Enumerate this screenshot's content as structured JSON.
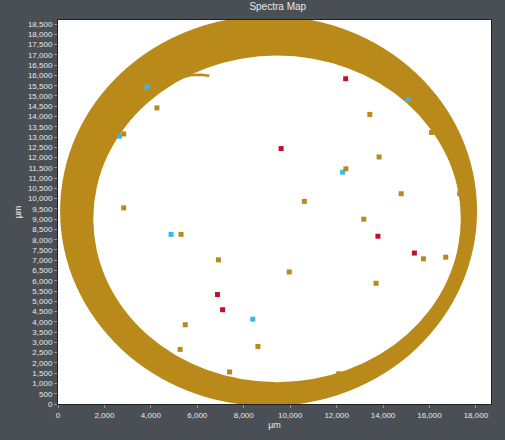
{
  "chart_data": {
    "type": "scatter",
    "title": "Spectra Map",
    "x_label": "µm",
    "y_label": "µm",
    "xlim": [
      0,
      18650
    ],
    "ylim": [
      0,
      18700
    ],
    "xticks": [
      0,
      {
        "value": 2000,
        "label": "2,000"
      },
      {
        "value": 4000,
        "label": "4,000"
      },
      {
        "value": 6000,
        "label": "6,000"
      },
      {
        "value": 8000,
        "label": "8,000"
      },
      {
        "value": 10000,
        "label": "10,000"
      },
      {
        "value": 12000,
        "label": "12,000"
      },
      {
        "value": 14000,
        "label": "14,000"
      },
      {
        "value": 16000,
        "label": "16,000"
      },
      {
        "value": 18000,
        "label": "18,000"
      }
    ],
    "yticks": [
      0,
      500,
      {
        "value": 1000,
        "label": "1,000"
      },
      {
        "value": 1500,
        "label": "1,500"
      },
      {
        "value": 2000,
        "label": "2,000"
      },
      {
        "value": 2500,
        "label": "2,500"
      },
      {
        "value": 3000,
        "label": "3,000"
      },
      {
        "value": 3500,
        "label": "3,500"
      },
      {
        "value": 4000,
        "label": "4,000"
      },
      {
        "value": 4500,
        "label": "4,500"
      },
      {
        "value": 5000,
        "label": "5,000"
      },
      {
        "value": 5500,
        "label": "5,500"
      },
      {
        "value": 6000,
        "label": "6,000"
      },
      {
        "value": 6500,
        "label": "6,500"
      },
      {
        "value": 7000,
        "label": "7,000"
      },
      {
        "value": 7500,
        "label": "7,500"
      },
      {
        "value": 8000,
        "label": "8,000"
      },
      {
        "value": 8500,
        "label": "8,500"
      },
      {
        "value": 9000,
        "label": "9,000"
      },
      {
        "value": 9500,
        "label": "9,500"
      },
      {
        "value": 10000,
        "label": "10,000"
      },
      {
        "value": 10500,
        "label": "10,500"
      },
      {
        "value": 11000,
        "label": "11,000"
      },
      {
        "value": 11500,
        "label": "11,500"
      },
      {
        "value": 12000,
        "label": "12,000"
      },
      {
        "value": 12500,
        "label": "12,500"
      },
      {
        "value": 13000,
        "label": "13,000"
      },
      {
        "value": 13500,
        "label": "13,500"
      },
      {
        "value": 14000,
        "label": "14,000"
      },
      {
        "value": 14500,
        "label": "14,500"
      },
      {
        "value": 15000,
        "label": "15,000"
      },
      {
        "value": 15500,
        "label": "15,500"
      },
      {
        "value": 16000,
        "label": "16,000"
      },
      {
        "value": 16500,
        "label": "16,500"
      },
      {
        "value": 17000,
        "label": "17,000"
      },
      {
        "value": 17500,
        "label": "17,500"
      },
      {
        "value": 18000,
        "label": "18,000"
      },
      {
        "value": 18500,
        "label": "18,500"
      }
    ],
    "grid": false,
    "filter_ring": {
      "color": "#b98a1a",
      "outer": {
        "x0": 90,
        "x1": 18050,
        "y0": -100,
        "y1": 18900
      },
      "inner": {
        "x0": 1520,
        "x1": 17350,
        "y0": 1060,
        "y1": 16970
      }
    },
    "series": [
      {
        "type": "scatter",
        "marker": "square",
        "x": [
          12390,
          3830,
          4260,
          15090,
          15250,
          13430,
          2650,
          2830,
          16090,
          9610,
          13830,
          12260,
          12400,
          14780,
          17300,
          10610,
          2830,
          13170,
          4870,
          5300,
          13780,
          17390,
          15350,
          15740,
          16700,
          6910,
          9960,
          13700,
          6870,
          7090,
          8390,
          5480,
          2000,
          5260,
          8610,
          12090,
          7390,
          5800
        ],
        "y": [
          15840,
          15430,
          14420,
          14830,
          14700,
          14100,
          13040,
          13150,
          13220,
          12440,
          12030,
          11290,
          11450,
          10240,
          10240,
          9870,
          9550,
          9000,
          8260,
          8260,
          8170,
          8030,
          7350,
          7070,
          7150,
          7020,
          6430,
          5880,
          5330,
          4590,
          4130,
          3860,
          4270,
          2660,
          2800,
          1470,
          1560,
          16250
        ],
        "colors": [
          "#c0102a",
          "#3ab8e8",
          "#b98a1a",
          "#3ab8e8",
          "#b98a1a",
          "#b98a1a",
          "#3ab8e8",
          "#b98a1a",
          "#b98a1a",
          "#c0102a",
          "#b98a1a",
          "#3ab8e8",
          "#b98a1a",
          "#b98a1a",
          "#b98a1a",
          "#b98a1a",
          "#b98a1a",
          "#b98a1a",
          "#3ab8e8",
          "#b98a1a",
          "#c0102a",
          "#b98a1a",
          "#c0102a",
          "#b98a1a",
          "#b98a1a",
          "#b98a1a",
          "#b98a1a",
          "#b98a1a",
          "#c0102a",
          "#c0102a",
          "#3ab8e8",
          "#b98a1a",
          "#b98a1a",
          "#b98a1a",
          "#b98a1a",
          "#b98a1a",
          "#b98a1a",
          "#b98a1a"
        ]
      },
      {
        "type": "line",
        "color": "#b98a1a",
        "line_style": "solid",
        "x": [
          4910,
          5300,
          5740,
          6150,
          6520
        ],
        "y": [
          15750,
          15900,
          16020,
          16030,
          15980
        ]
      }
    ]
  }
}
